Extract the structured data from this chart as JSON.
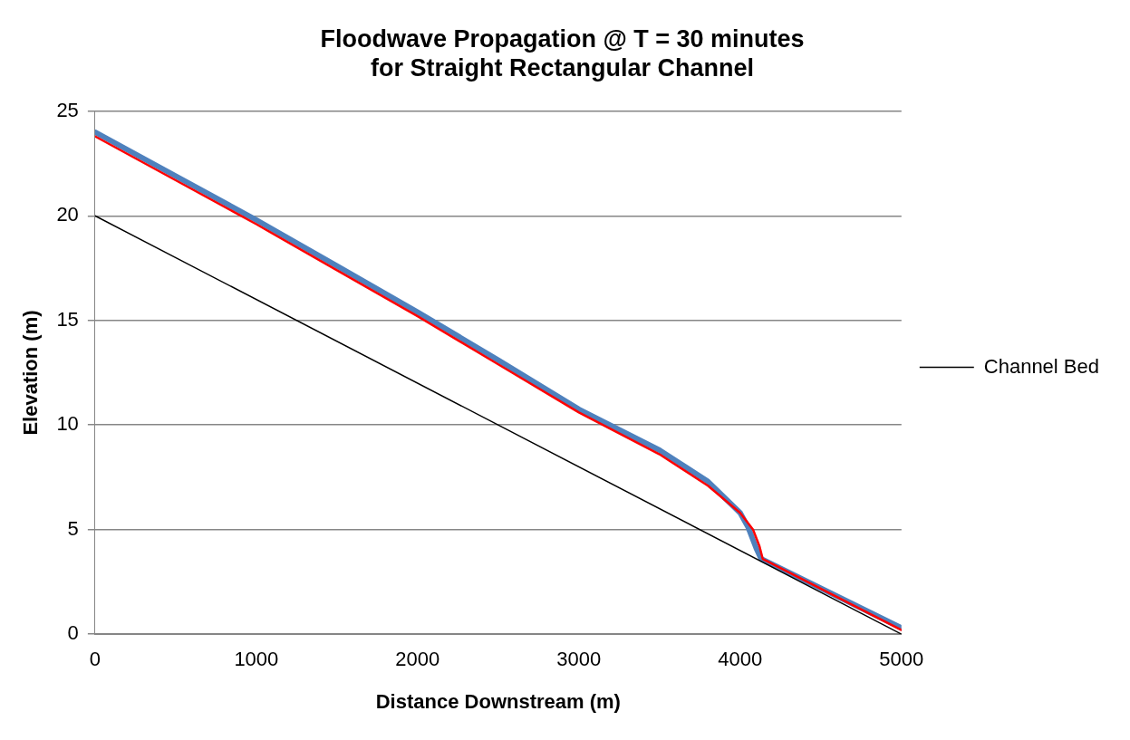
{
  "chart_data": {
    "type": "line",
    "title": "Floodwave Propagation @ T = 30 minutes for Straight Rectangular Channel",
    "xlabel": "Distance Downstream (m)",
    "ylabel": "Elevation (m)",
    "series": [
      {
        "color": "#4f81bd",
        "x": [
          0,
          500,
          1000,
          1500,
          2000,
          2500,
          3000,
          3500,
          3800,
          4000,
          4050,
          4100,
          4130,
          5000
        ],
        "values": [
          24.0,
          21.9,
          19.8,
          17.6,
          15.4,
          13.1,
          10.75,
          8.8,
          7.3,
          5.8,
          5.1,
          4.1,
          3.6,
          0.3
        ]
      },
      {
        "color": "#ff0000",
        "x": [
          0,
          500,
          1000,
          1500,
          2000,
          2500,
          3000,
          3500,
          3800,
          4000,
          4080,
          4120,
          4140,
          5000
        ],
        "values": [
          23.8,
          21.7,
          19.6,
          17.4,
          15.2,
          12.9,
          10.6,
          8.6,
          7.1,
          5.8,
          5.0,
          4.2,
          3.6,
          0.2
        ]
      },
      {
        "name": "Channel Bed",
        "color": "#000000",
        "x": [
          0,
          5000
        ],
        "values": [
          20,
          0
        ]
      }
    ],
    "xlim": [
      0,
      5000
    ],
    "xticks": [
      0,
      1000,
      2000,
      3000,
      4000,
      5000
    ],
    "ylim": [
      0,
      25
    ],
    "yticks": [
      0,
      5,
      10,
      15,
      20,
      25
    ],
    "grid": "y",
    "legend": "right",
    "marker": "none",
    "line_style": "solid"
  }
}
